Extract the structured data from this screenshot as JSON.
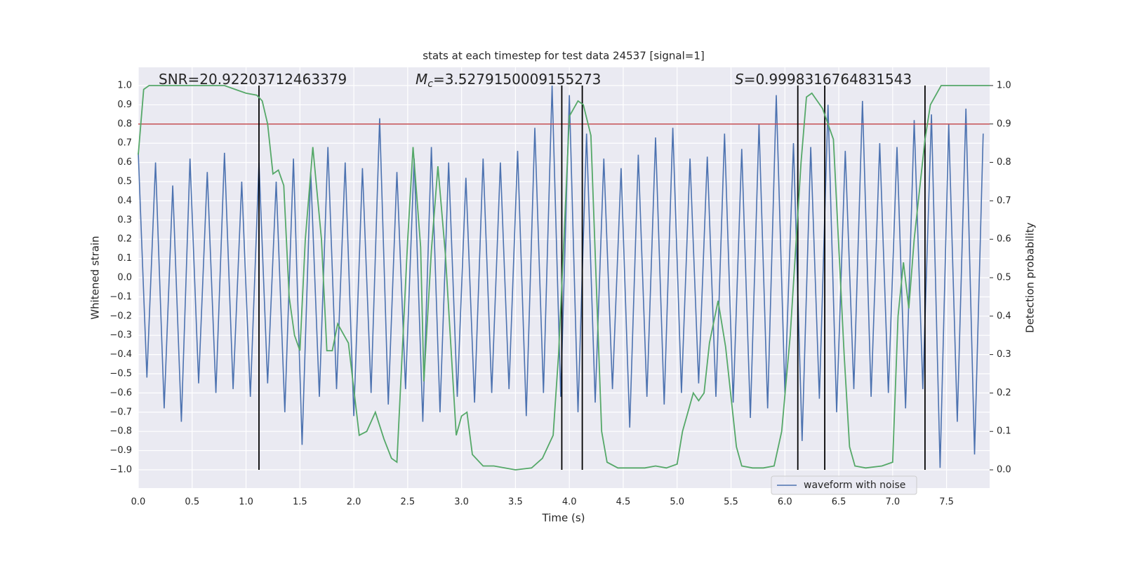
{
  "chart_data": {
    "type": "line",
    "title": "stats at each timestep for test data 24537 [signal=1]",
    "xlabel": "Time (s)",
    "ylabel": "Whitened strain",
    "y2label": "Detection probability",
    "xlim": [
      0,
      7.9
    ],
    "ylim": [
      -1.095,
      1.095
    ],
    "y2lim": [
      -0.0474,
      1.0474
    ],
    "grid": true,
    "background": "#eaeaf2",
    "xticks": [
      {
        "value": 0,
        "label": "0.0"
      },
      0.5,
      {
        "value": 1,
        "label": "1.0"
      },
      1.5,
      {
        "value": 2,
        "label": "2.0"
      },
      2.5,
      {
        "value": 3,
        "label": "3.0"
      },
      3.5,
      {
        "value": 4,
        "label": "4.0"
      },
      4.5,
      {
        "value": 5,
        "label": "5.0"
      },
      5.5,
      {
        "value": 6,
        "label": "6.0"
      },
      6.5,
      {
        "value": 7,
        "label": "7.0"
      },
      7.5
    ],
    "yticks": [
      {
        "value": -1,
        "label": "−1.0"
      },
      {
        "value": -0.9,
        "label": "−0.9"
      },
      {
        "value": -0.8,
        "label": "−0.8"
      },
      {
        "value": -0.7,
        "label": "−0.7"
      },
      {
        "value": -0.6,
        "label": "−0.6"
      },
      {
        "value": -0.5,
        "label": "−0.5"
      },
      {
        "value": -0.4,
        "label": "−0.4"
      },
      {
        "value": -0.3,
        "label": "−0.3"
      },
      {
        "value": -0.2,
        "label": "−0.2"
      },
      {
        "value": -0.1,
        "label": "−0.1"
      },
      {
        "value": 0,
        "label": "0.0"
      },
      0.1,
      0.2,
      0.3,
      0.4,
      0.5,
      0.6,
      0.7,
      0.8,
      0.9,
      {
        "value": 1,
        "label": "1.0"
      }
    ],
    "y2ticks": [
      {
        "value": 0,
        "label": "0.0"
      },
      0.1,
      0.2,
      0.3,
      0.4,
      0.5,
      0.6,
      0.7,
      0.8,
      0.9,
      {
        "value": 1,
        "label": "1.0"
      }
    ],
    "legend": "lower right",
    "annotations": [
      {
        "text": "SNR=20.92203712463379"
      },
      {
        "symbol": "M",
        "subscript": "c",
        "text": "=3.5279150009155273"
      },
      {
        "symbol": "S",
        "text": "=0.9998316764831543"
      }
    ],
    "series": [
      {
        "name": "waveform with noise",
        "color": "#4c72b0",
        "axis": "y",
        "x": [
          0,
          0.08,
          0.16,
          0.24,
          0.32,
          0.4,
          0.48,
          0.56,
          0.64,
          0.72,
          0.8,
          0.88,
          0.96,
          1.04,
          1.12,
          1.2,
          1.28,
          1.36,
          1.44,
          1.52,
          1.6,
          1.68,
          1.76,
          1.84,
          1.92,
          2,
          2.08,
          2.16,
          2.24,
          2.32,
          2.4,
          2.48,
          2.56,
          2.64,
          2.72,
          2.8,
          2.88,
          2.96,
          3.04,
          3.12,
          3.2,
          3.28,
          3.36,
          3.44,
          3.52,
          3.6,
          3.68,
          3.76,
          3.84,
          3.92,
          4,
          4.08,
          4.16,
          4.24,
          4.32,
          4.4,
          4.48,
          4.56,
          4.64,
          4.72,
          4.8,
          4.88,
          4.96,
          5.04,
          5.12,
          5.2,
          5.28,
          5.36,
          5.44,
          5.52,
          5.6,
          5.68,
          5.76,
          5.84,
          5.92,
          6,
          6.08,
          6.16,
          6.24,
          6.32,
          6.4,
          6.48,
          6.56,
          6.64,
          6.72,
          6.8,
          6.88,
          6.96,
          7.04,
          7.12,
          7.2,
          7.28,
          7.36,
          7.44,
          7.52,
          7.6,
          7.68,
          7.76,
          7.84
        ],
        "values": [
          0.65,
          -0.52,
          0.6,
          -0.68,
          0.48,
          -0.75,
          0.62,
          -0.55,
          0.55,
          -0.6,
          0.65,
          -0.58,
          0.5,
          -0.62,
          0.6,
          -0.55,
          0.5,
          -0.7,
          0.62,
          -0.87,
          0.55,
          -0.62,
          0.68,
          -0.58,
          0.6,
          -0.72,
          0.57,
          -0.6,
          0.83,
          -0.66,
          0.55,
          -0.58,
          0.62,
          -0.75,
          0.68,
          -0.7,
          0.6,
          -0.62,
          0.52,
          -0.65,
          0.62,
          -0.6,
          0.6,
          -0.58,
          0.66,
          -0.72,
          0.78,
          -0.6,
          1.0,
          -0.62,
          0.95,
          -0.7,
          0.75,
          -0.65,
          0.62,
          -0.58,
          0.57,
          -0.78,
          0.64,
          -0.62,
          0.73,
          -0.66,
          0.78,
          -0.6,
          0.62,
          -0.55,
          0.63,
          -0.62,
          0.75,
          -0.65,
          0.67,
          -0.73,
          0.8,
          -0.68,
          0.95,
          -0.6,
          0.7,
          -0.85,
          0.68,
          -0.63,
          0.9,
          -0.7,
          0.66,
          -0.58,
          0.92,
          -0.62,
          0.7,
          -0.6,
          0.68,
          -0.68,
          0.82,
          -0.58,
          0.85,
          -0.99,
          0.8,
          -0.75,
          0.88,
          -0.92,
          0.75
        ]
      },
      {
        "name": "Detection probability",
        "color": "#55a868",
        "axis": "y2",
        "x": [
          0,
          0.05,
          0.1,
          0.2,
          0.3,
          0.4,
          0.5,
          0.6,
          0.7,
          0.8,
          0.9,
          1.0,
          1.1,
          1.15,
          1.2,
          1.25,
          1.3,
          1.35,
          1.4,
          1.45,
          1.5,
          1.55,
          1.62,
          1.7,
          1.75,
          1.8,
          1.85,
          1.95,
          2.05,
          2.12,
          2.2,
          2.28,
          2.35,
          2.4,
          2.5,
          2.55,
          2.62,
          2.65,
          2.72,
          2.78,
          2.85,
          2.95,
          3.0,
          3.05,
          3.1,
          3.2,
          3.3,
          3.5,
          3.65,
          3.75,
          3.85,
          3.9,
          3.95,
          4.0,
          4.08,
          4.13,
          4.2,
          4.3,
          4.35,
          4.45,
          4.6,
          4.7,
          4.8,
          4.9,
          5.0,
          5.05,
          5.15,
          5.2,
          5.25,
          5.3,
          5.38,
          5.45,
          5.55,
          5.6,
          5.7,
          5.8,
          5.9,
          5.97,
          6.05,
          6.15,
          6.2,
          6.25,
          6.35,
          6.45,
          6.55,
          6.6,
          6.65,
          6.75,
          6.9,
          7.0,
          7.05,
          7.1,
          7.15,
          7.2,
          7.3,
          7.35,
          7.45,
          7.6,
          7.8,
          7.9
        ],
        "values": [
          0.82,
          0.99,
          1.0,
          1.0,
          1.0,
          1.0,
          1.0,
          1.0,
          1.0,
          1.0,
          0.99,
          0.98,
          0.975,
          0.96,
          0.9,
          0.77,
          0.78,
          0.74,
          0.45,
          0.35,
          0.31,
          0.6,
          0.84,
          0.6,
          0.31,
          0.31,
          0.38,
          0.33,
          0.09,
          0.1,
          0.15,
          0.08,
          0.03,
          0.02,
          0.6,
          0.84,
          0.58,
          0.23,
          0.57,
          0.79,
          0.56,
          0.09,
          0.14,
          0.15,
          0.04,
          0.01,
          0.01,
          0.0,
          0.005,
          0.03,
          0.09,
          0.3,
          0.6,
          0.92,
          0.96,
          0.95,
          0.87,
          0.1,
          0.02,
          0.005,
          0.005,
          0.005,
          0.01,
          0.005,
          0.015,
          0.1,
          0.2,
          0.18,
          0.2,
          0.33,
          0.44,
          0.32,
          0.06,
          0.01,
          0.005,
          0.005,
          0.01,
          0.1,
          0.35,
          0.8,
          0.97,
          0.98,
          0.94,
          0.86,
          0.3,
          0.06,
          0.01,
          0.005,
          0.01,
          0.02,
          0.4,
          0.54,
          0.42,
          0.6,
          0.86,
          0.95,
          1.0,
          1.0,
          1.0,
          1.0
        ]
      }
    ],
    "hlines": [
      {
        "y": 0.8,
        "color": "#c44e52"
      }
    ],
    "vlines": {
      "x": [
        1.12,
        3.93,
        4.12,
        6.12,
        6.37,
        7.3
      ],
      "ymin": -1,
      "ymax": 1,
      "color": "#000000"
    }
  }
}
